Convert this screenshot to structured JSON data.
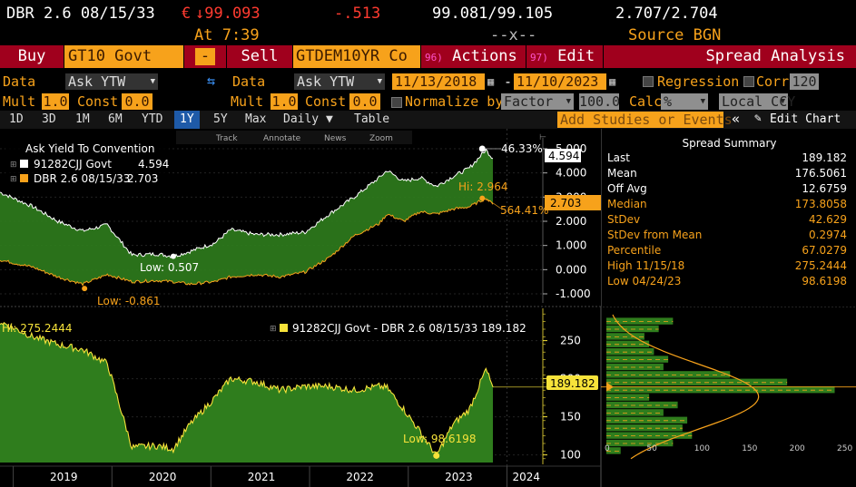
{
  "header": {
    "security": "DBR 2.6 08/15/33",
    "currency_symbol": "€",
    "price": "↓99.093",
    "change": "-.513",
    "bid_ask": "99.081/99.105",
    "yields": "2.707/2.704",
    "time": "At 7:39",
    "size": "--x--",
    "source": "Source BGN"
  },
  "toolbar": {
    "buy_label": "Buy",
    "buy_security": "GT10 Govt",
    "minus_label": "-",
    "sell_label": "Sell",
    "sell_security": "GTDEM10YR Co",
    "actions_num": "96)",
    "actions_label": "Actions ▾",
    "edit_num": "97)",
    "edit_label": "Edit ▾",
    "spread_label": "Spread Analysis"
  },
  "row3": {
    "data_label": "Data",
    "data1_value": "Ask YTW",
    "data2_label": "Data",
    "data2_value": "Ask YTW",
    "date_from": "11/13/2018",
    "date_sep": "-",
    "date_to": "11/10/2023",
    "regression_label": "Regression",
    "corr_label": "Corr",
    "corr_value": "120"
  },
  "row4": {
    "mult_label": "Mult",
    "mult1_value": "1.0",
    "const_label": "Const",
    "const1_value": "0.0",
    "mult2_label": "Mult",
    "mult2_value": "1.0",
    "const2_label": "Const",
    "const2_value": "0.0",
    "normalize_label": "Normalize by",
    "factor_value": "Factor",
    "factor_num": "100.0",
    "calc_label": "Calc",
    "calc_value": "%",
    "ccy_value": "Local CCY"
  },
  "tabs": {
    "items": [
      "1D",
      "3D",
      "1M",
      "6M",
      "YTD",
      "1Y",
      "5Y",
      "Max",
      "Daily ▼",
      "Table"
    ],
    "active": "1Y",
    "studies_placeholder": "Add Studies or Events",
    "collapse": "«",
    "edit_chart": "Edit Chart"
  },
  "chart_tools": [
    "Track",
    "Annotate",
    "News",
    "Zoom"
  ],
  "upper_legend": {
    "title": "Ask Yield To Convention",
    "s1_name": "91282CJJ Govt",
    "s1_value": "4.594",
    "s2_name": "DBR 2.6 08/15/33",
    "s2_value": "2.703"
  },
  "upper_annotations": {
    "hi_pct": "46.33%",
    "last1": "4.594",
    "hi2": "Hi: 2.964",
    "last2": "2.703",
    "pct2": "564.41%",
    "low1": "Low: 0.507",
    "low2": "Low: -0.861"
  },
  "lower_legend": "91282CJJ Govt - DBR 2.6 08/15/33  189.182",
  "lower_annotations": {
    "hi": "Hi: 275.2444",
    "low": "Low: 98.6198",
    "last": "189.182"
  },
  "summary": {
    "title": "Spread Summary",
    "rows": [
      {
        "label": "Last",
        "value": "189.182",
        "color": "#ffffff"
      },
      {
        "label": "Mean",
        "value": "176.5061",
        "color": "#ffffff"
      },
      {
        "label": "Off Avg",
        "value": "12.6759",
        "color": "#ffffff"
      },
      {
        "label": "Median",
        "value": "173.8058",
        "color": "#f7a21b"
      },
      {
        "label": "StDev",
        "value": "42.629",
        "color": "#f7a21b"
      },
      {
        "label": "StDev from Mean",
        "value": "0.2974",
        "color": "#f7a21b"
      },
      {
        "label": "Percentile",
        "value": "67.0279",
        "color": "#f7a21b"
      },
      {
        "label": "High 11/15/18",
        "value": "275.2444",
        "color": "#f7a21b"
      },
      {
        "label": "Low 04/24/23",
        "value": "98.6198",
        "color": "#f7a21b"
      }
    ]
  },
  "x_axis_years": [
    "2019",
    "2020",
    "2021",
    "2022",
    "2023",
    "2024"
  ],
  "colors": {
    "orange": "#f7a21b",
    "green": "#2f7d1d",
    "red_button": "#a0001d",
    "active_tab": "#1e5aa8"
  },
  "chart_data": [
    {
      "type": "line",
      "title": "Ask Yield To Convention",
      "x": [
        "2018-11-13",
        "2019-03",
        "2019-06",
        "2019-09",
        "2019-12",
        "2020-03",
        "2020-06",
        "2020-08",
        "2020-10",
        "2021-01",
        "2021-03",
        "2021-06",
        "2021-09",
        "2021-12",
        "2022-03",
        "2022-06",
        "2022-09",
        "2022-10",
        "2022-12",
        "2023-02",
        "2023-04",
        "2023-06",
        "2023-08",
        "2023-10",
        "2023-11-10"
      ],
      "series": [
        {
          "name": "91282CJJ Govt",
          "values": [
            3.2,
            2.6,
            2.0,
            1.6,
            1.85,
            0.6,
            0.65,
            0.55,
            0.75,
            1.1,
            1.65,
            1.45,
            1.45,
            1.55,
            2.3,
            3.0,
            3.8,
            4.1,
            3.65,
            3.8,
            3.45,
            3.85,
            4.2,
            4.95,
            4.594
          ]
        },
        {
          "name": "DBR 2.6 08/15/33",
          "values": [
            0.4,
            0.1,
            -0.3,
            -0.6,
            -0.2,
            -0.5,
            -0.45,
            -0.5,
            -0.6,
            -0.5,
            -0.3,
            -0.2,
            -0.3,
            -0.1,
            0.5,
            1.4,
            1.9,
            2.3,
            2.0,
            2.4,
            2.3,
            2.5,
            2.6,
            2.95,
            2.703
          ]
        }
      ],
      "ylim": [
        -1.3,
        5.3
      ],
      "yticks": [
        -1.0,
        0.0,
        1.0,
        2.0,
        3.0,
        4.0,
        5.0
      ],
      "ytick_labels": [
        "-1.000",
        "0.000",
        "1.000",
        "2.000",
        "3.000",
        "4.000",
        "5.000"
      ]
    },
    {
      "type": "area",
      "title": "91282CJJ Govt - DBR 2.6 08/15/33",
      "x": [
        "2018-11-13",
        "2019-03",
        "2019-06",
        "2019-09",
        "2019-12",
        "2020-03",
        "2020-06",
        "2020-08",
        "2020-10",
        "2021-01",
        "2021-03",
        "2021-06",
        "2021-09",
        "2021-12",
        "2022-03",
        "2022-06",
        "2022-09",
        "2022-10",
        "2022-12",
        "2023-02",
        "2023-04",
        "2023-06",
        "2023-08",
        "2023-10",
        "2023-11-10"
      ],
      "series": [
        {
          "name": "91282CJJ Govt - DBR 2.6 08/15/33",
          "values": [
            275,
            255,
            245,
            238,
            220,
            110,
            112,
            108,
            140,
            175,
            200,
            196,
            185,
            190,
            190,
            185,
            190,
            188,
            160,
            130,
            99,
            140,
            160,
            212,
            189.182
          ]
        }
      ],
      "ylim": [
        90,
        290
      ],
      "yticks": [
        100,
        150,
        200,
        250
      ],
      "ytick_labels": [
        "100",
        "150",
        "200",
        "250"
      ]
    },
    {
      "type": "bar",
      "title": "Spread distribution",
      "categories": [
        "100",
        "110",
        "120",
        "130",
        "140",
        "150",
        "160",
        "170",
        "180",
        "190",
        "200",
        "210",
        "220",
        "230",
        "240",
        "250",
        "260",
        "270"
      ],
      "values": [
        15,
        70,
        90,
        80,
        85,
        60,
        75,
        45,
        240,
        190,
        130,
        60,
        65,
        50,
        45,
        40,
        55,
        70
      ],
      "xlim": [
        0,
        250
      ],
      "xticks": [
        0,
        50,
        100,
        150,
        200,
        250
      ],
      "xtick_labels": [
        "0",
        "50",
        "100",
        "150",
        "200",
        "250"
      ]
    }
  ]
}
